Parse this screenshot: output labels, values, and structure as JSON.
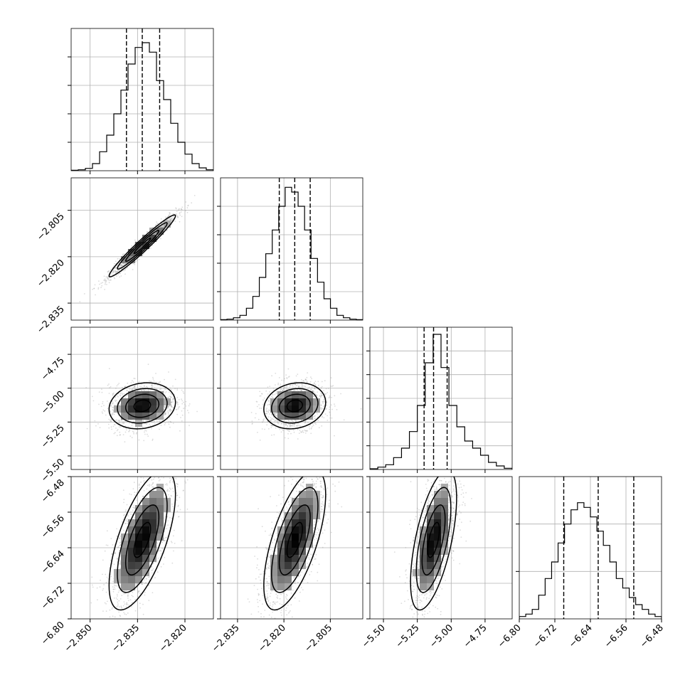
{
  "chart_data": {
    "type": "corner",
    "title": "",
    "grid": true,
    "parameters": [
      {
        "range": [
          -2.856,
          -2.811
        ],
        "ticks": [
          -2.85,
          -2.835,
          -2.82
        ],
        "tick_labels": [
          "−2.850",
          "−2.835",
          "−2.820"
        ],
        "quantiles": [
          -2.8385,
          -2.8335,
          -2.828
        ],
        "hist_ymax": 60,
        "hist_ticks": [
          12,
          24,
          36,
          48
        ],
        "hist": [
          0.2,
          0.4,
          1,
          3,
          8,
          15,
          24,
          34,
          45,
          52,
          54,
          50,
          38,
          30,
          20,
          12,
          7,
          3,
          1.2,
          0.4
        ],
        "axis_label": ""
      },
      {
        "range": [
          -2.8405,
          -2.7945
        ],
        "ticks": [
          -2.835,
          -2.82,
          -2.805
        ],
        "tick_labels": [
          "−2.835",
          "−2.820",
          "−2.805"
        ],
        "quantiles": [
          -2.8215,
          -2.8165,
          -2.8115
        ],
        "hist_ymax": 60,
        "hist_ticks": [
          12,
          24,
          36,
          48
        ],
        "hist": [
          0.2,
          0.4,
          1,
          2,
          5,
          10,
          18,
          28,
          38,
          48,
          56,
          54,
          48,
          38,
          26,
          16,
          9,
          5,
          2,
          1,
          0.4,
          0.2
        ],
        "axis_label": ""
      },
      {
        "range": [
          -5.6,
          -4.55
        ],
        "ticks": [
          -5.5,
          -5.25,
          -5.0,
          -4.75
        ],
        "tick_labels": [
          "−5.50",
          "−5.25",
          "−5.00",
          "−4.75"
        ],
        "quantiles": [
          -5.2,
          -5.13,
          -5.03
        ],
        "hist_ymax": 60,
        "hist_ticks": [
          10,
          20,
          30,
          40,
          50
        ],
        "hist": [
          0.3,
          1,
          2,
          5,
          9,
          16,
          27,
          45,
          57,
          43,
          27,
          18,
          12,
          9,
          6,
          3,
          1.5,
          0.5
        ],
        "axis_label": ""
      },
      {
        "range": [
          -6.8,
          -6.48
        ],
        "ticks": [
          -6.8,
          -6.72,
          -6.64,
          -6.56,
          -6.48
        ],
        "tick_labels": [
          "−6.80",
          "−6.72",
          "−6.64",
          "−6.56",
          "−6.48"
        ],
        "quantiles": [
          -6.7,
          -6.6225,
          -6.5425
        ],
        "hist_ymax": 60,
        "hist_ticks": [
          20,
          40
        ],
        "hist": [
          1,
          2,
          4,
          10,
          17,
          24,
          32,
          40,
          46,
          49,
          47,
          43,
          37,
          31,
          24,
          17,
          13,
          9,
          6,
          4,
          2,
          1
        ],
        "axis_label": ""
      }
    ],
    "correlation": [
      [
        1.0,
        0.97,
        0.15,
        0.65
      ],
      [
        0.97,
        1.0,
        0.15,
        0.65
      ],
      [
        0.15,
        0.15,
        1.0,
        0.6
      ],
      [
        0.65,
        0.65,
        0.6,
        1.0
      ]
    ]
  }
}
